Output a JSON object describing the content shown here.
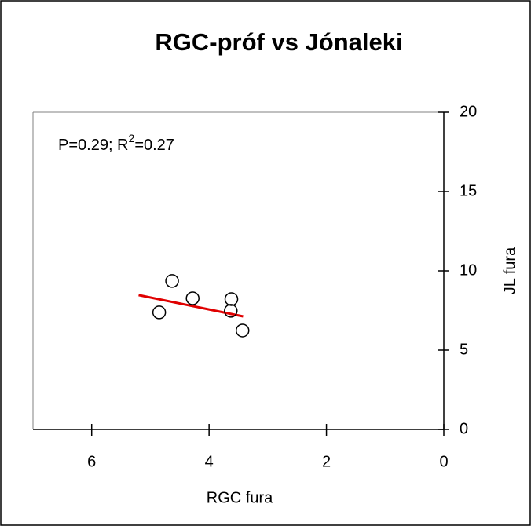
{
  "chart_data": {
    "type": "scatter",
    "title": "RGC-próf vs Jónaleki",
    "annotation": [
      "P=0.29; R",
      "2",
      "=0.27"
    ],
    "x_label": "RGC fura",
    "y_label": "JL fura",
    "x": [
      4.63,
      4.28,
      3.62,
      3.63,
      4.85,
      3.43
    ],
    "values": [
      9.36,
      8.27,
      8.22,
      7.48,
      7.38,
      6.24
    ],
    "trend": {
      "x": [
        5.2,
        3.42
      ],
      "values": [
        8.47,
        7.13
      ],
      "color": "#e00000"
    },
    "xlim": [
      7,
      0
    ],
    "xticks": [
      6,
      4,
      2,
      0
    ],
    "ylim": [
      0,
      20
    ],
    "yticks": [
      0,
      5,
      10,
      15,
      20
    ],
    "y_axis_side": "right"
  }
}
